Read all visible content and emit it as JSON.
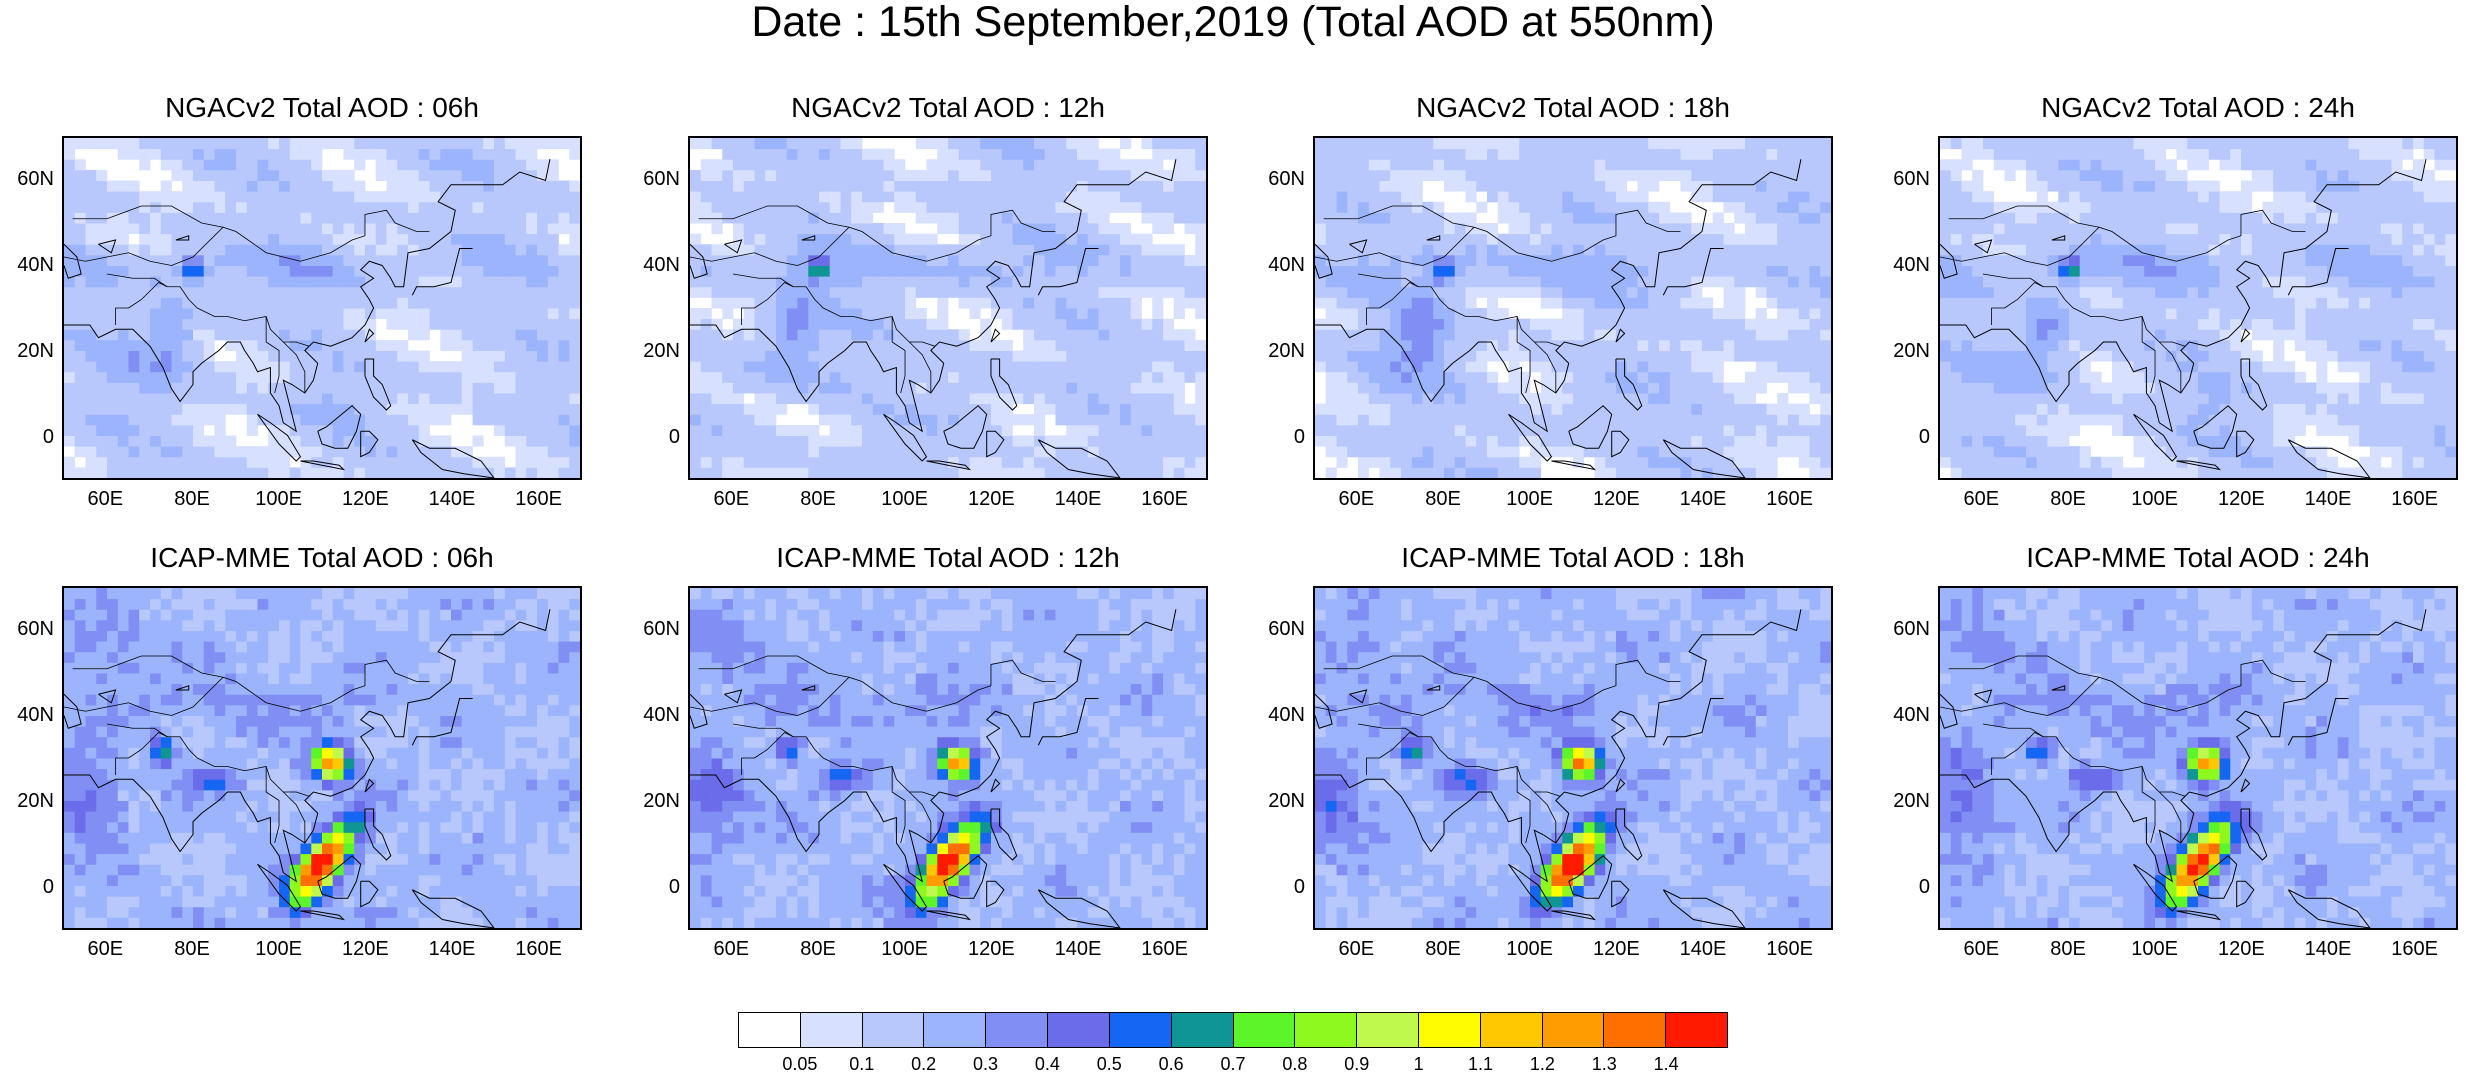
{
  "title": "Date : 15th September,2019 (Total AOD at 550nm)",
  "colorbar": {
    "colors": [
      "#ffffff",
      "#d7e1ff",
      "#b8c8fd",
      "#9bb4fb",
      "#818ff4",
      "#6b6cea",
      "#1466f3",
      "#0f9594",
      "#5cf52a",
      "#8ef91e",
      "#c0f94e",
      "#fffb00",
      "#ffc800",
      "#ff9c00",
      "#ff6f00",
      "#ff1a00"
    ],
    "labels": [
      "0.05",
      "0.1",
      "0.2",
      "0.3",
      "0.4",
      "0.5",
      "0.6",
      "0.7",
      "0.8",
      "0.9",
      "1",
      "1.1",
      "1.2",
      "1.3",
      "1.4"
    ]
  },
  "axes": {
    "lat_labels": [
      "60N",
      "40N",
      "20N",
      "0"
    ],
    "lon_labels": [
      "60E",
      "80E",
      "100E",
      "120E",
      "140E",
      "160E"
    ]
  },
  "panels": [
    {
      "title": "NGACv2 Total AOD : 06h",
      "model": "NGACv2",
      "lead": "06h"
    },
    {
      "title": "NGACv2 Total AOD : 12h",
      "model": "NGACv2",
      "lead": "12h"
    },
    {
      "title": "NGACv2 Total AOD : 18h",
      "model": "NGACv2",
      "lead": "18h"
    },
    {
      "title": "NGACv2 Total AOD : 24h",
      "model": "NGACv2",
      "lead": "24h"
    },
    {
      "title": "ICAP-MME Total AOD : 06h",
      "model": "ICAP-MME",
      "lead": "06h"
    },
    {
      "title": "ICAP-MME Total AOD : 12h",
      "model": "ICAP-MME",
      "lead": "12h"
    },
    {
      "title": "ICAP-MME Total AOD : 18h",
      "model": "ICAP-MME",
      "lead": "18h"
    },
    {
      "title": "ICAP-MME Total AOD : 24h",
      "model": "ICAP-MME",
      "lead": "24h"
    }
  ]
}
